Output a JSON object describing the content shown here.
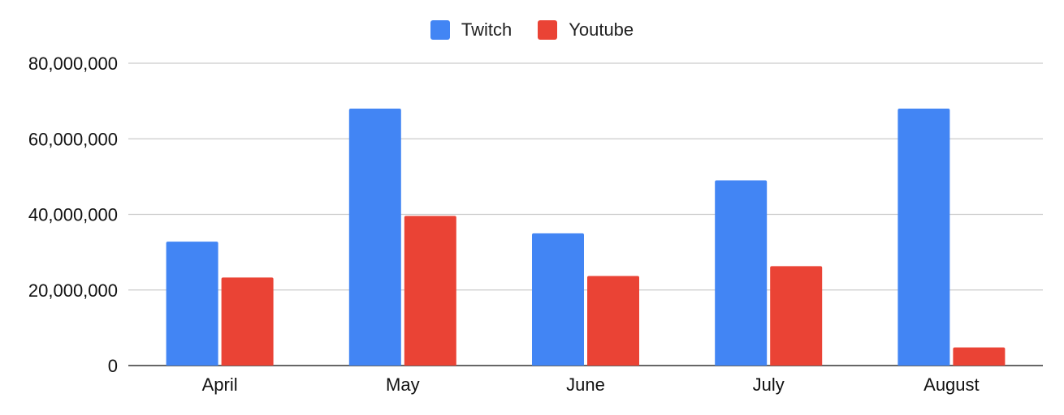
{
  "chart_data": {
    "type": "bar",
    "title": "",
    "xlabel": "",
    "ylabel": "",
    "categories": [
      "April",
      "May",
      "June",
      "July",
      "August"
    ],
    "series": [
      {
        "name": "Twitch",
        "color": "#4285f4",
        "values": [
          32800000,
          68000000,
          35000000,
          49000000,
          68000000
        ]
      },
      {
        "name": "Youtube",
        "color": "#ea4335",
        "values": [
          23300000,
          39600000,
          23700000,
          26300000,
          4800000
        ]
      }
    ],
    "ylim": [
      0,
      80000000
    ],
    "yticks": [
      0,
      20000000,
      40000000,
      60000000,
      80000000
    ],
    "ytick_labels": [
      "0",
      "20,000,000",
      "40,000,000",
      "60,000,000",
      "80,000,000"
    ],
    "grid": true,
    "legend_position": "top-center"
  }
}
